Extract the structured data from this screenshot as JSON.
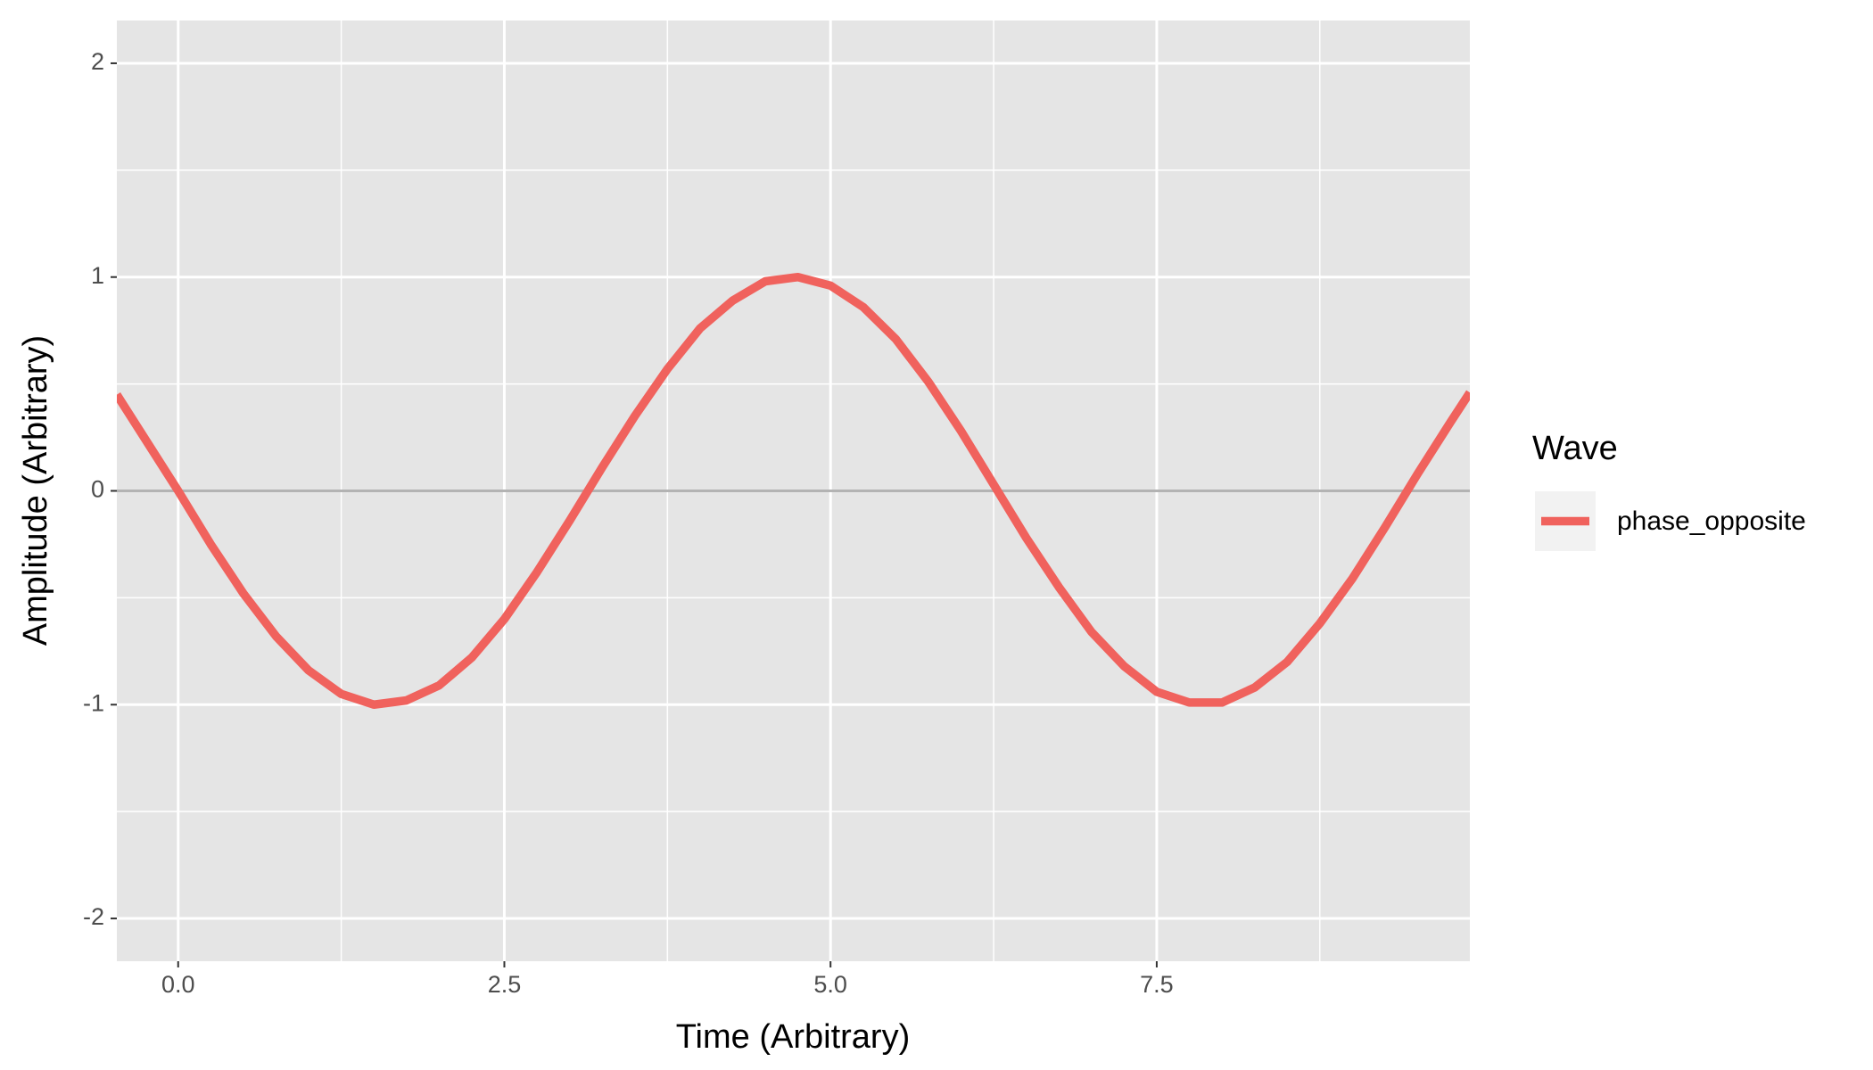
{
  "chart_data": {
    "type": "line",
    "x_label": "Time (Arbitrary)",
    "y_label": "Amplitude (Arbitrary)",
    "legend_title": "Wave",
    "x": [
      -0.47,
      0,
      0.25,
      0.5,
      0.75,
      1.0,
      1.25,
      1.5,
      1.75,
      2.0,
      2.25,
      2.5,
      2.75,
      3.0,
      3.25,
      3.5,
      3.75,
      4.0,
      4.25,
      4.5,
      4.75,
      5.0,
      5.25,
      5.5,
      5.75,
      6.0,
      6.25,
      6.5,
      6.75,
      7.0,
      7.25,
      7.5,
      7.75,
      8.0,
      8.25,
      8.5,
      8.75,
      9.0,
      9.25,
      9.5,
      9.75,
      9.9
    ],
    "series": [
      {
        "name": "phase_opposite",
        "color": "#f0625d",
        "values": [
          0.45,
          0,
          -0.25,
          -0.48,
          -0.68,
          -0.84,
          -0.95,
          -1.0,
          -0.98,
          -0.91,
          -0.78,
          -0.6,
          -0.38,
          -0.14,
          0.11,
          0.35,
          0.57,
          0.76,
          0.89,
          0.98,
          1.0,
          0.96,
          0.86,
          0.71,
          0.51,
          0.28,
          0.03,
          -0.22,
          -0.45,
          -0.66,
          -0.82,
          -0.94,
          -0.99,
          -0.99,
          -0.92,
          -0.8,
          -0.62,
          -0.41,
          -0.17,
          0.08,
          0.32,
          0.46
        ]
      }
    ],
    "xlim": [
      -0.47,
      9.9
    ],
    "ylim": [
      -2.2,
      2.2
    ],
    "xticks": [
      {
        "value": 0,
        "label": "0.0"
      },
      2.5,
      {
        "value": 5,
        "label": "5.0"
      },
      7.5
    ],
    "yticks": [
      -2,
      -1,
      0,
      1,
      2
    ],
    "hline": 0,
    "grid": true
  }
}
